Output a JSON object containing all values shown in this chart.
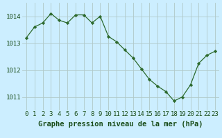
{
  "x": [
    0,
    1,
    2,
    3,
    4,
    5,
    6,
    7,
    8,
    9,
    10,
    11,
    12,
    13,
    14,
    15,
    16,
    17,
    18,
    19,
    20,
    21,
    22,
    23
  ],
  "y": [
    1013.2,
    1013.6,
    1013.75,
    1014.1,
    1013.85,
    1013.75,
    1014.05,
    1014.05,
    1013.75,
    1014.0,
    1013.25,
    1013.05,
    1012.75,
    1012.45,
    1012.05,
    1011.65,
    1011.4,
    1011.2,
    1010.85,
    1011.0,
    1011.45,
    1012.25,
    1012.55,
    1012.7
  ],
  "line_color": "#2d6a2d",
  "marker": "D",
  "marker_size": 2.2,
  "background_color": "#cceeff",
  "grid_color": "#b0c8c8",
  "xlabel": "Graphe pression niveau de la mer (hPa)",
  "xlabel_fontsize": 7.5,
  "yticks": [
    1011,
    1012,
    1013,
    1014
  ],
  "xticks": [
    0,
    1,
    2,
    3,
    4,
    5,
    6,
    7,
    8,
    9,
    10,
    11,
    12,
    13,
    14,
    15,
    16,
    17,
    18,
    19,
    20,
    21,
    22,
    23
  ],
  "ylim": [
    1010.5,
    1014.5
  ],
  "xlim": [
    -0.5,
    23.5
  ],
  "tick_fontsize": 6.5,
  "tick_color": "#1a4d1a",
  "label_color": "#1a4d1a"
}
